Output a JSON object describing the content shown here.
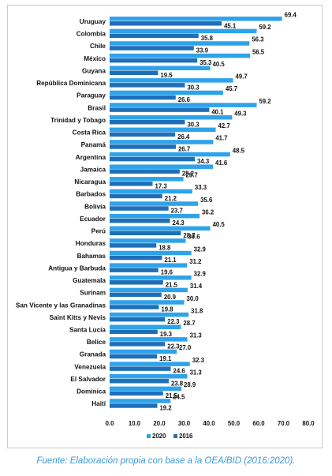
{
  "chart_data": {
    "type": "bar",
    "orientation": "horizontal",
    "categories": [
      "Uruguay",
      "Colombia",
      "Chile",
      "México",
      "Guyana",
      "República Dominicana",
      "Paraguay",
      "Brasil",
      "Trinidad y Tobago",
      "Costa Rica",
      "Panamá",
      "Argentina",
      "Jamaica",
      "Nicaragua",
      "Barbados",
      "Bolivia",
      "Ecuador",
      "Perú",
      "Honduras",
      "Bahamas",
      "Antigua y Barbuda",
      "Guatemala",
      "Surinam",
      "San Vicente y las Granadinas",
      "Saint Kitts y Nevis",
      "Santa Lucía",
      "Belice",
      "Granada",
      "Venezuela",
      "El Salvador",
      "Dominica",
      "Haití"
    ],
    "series": [
      {
        "name": "2020",
        "color": "#2ea3ea",
        "values": [
          69.4,
          59.2,
          56.3,
          56.5,
          40.5,
          49.7,
          45.7,
          59.2,
          49.3,
          42.7,
          41.7,
          48.5,
          41.6,
          29.7,
          33.3,
          35.6,
          36.2,
          40.5,
          30.6,
          32.9,
          31.2,
          32.9,
          31.4,
          30.0,
          31.8,
          28.7,
          31.3,
          27.0,
          32.3,
          31.3,
          28.9,
          24.5
        ]
      },
      {
        "name": "2016",
        "color": "#1f6fb8",
        "values": [
          45.1,
          35.8,
          33.9,
          35.3,
          19.5,
          30.3,
          26.6,
          40.1,
          30.3,
          26.4,
          26.7,
          34.3,
          28.2,
          17.3,
          21.2,
          23.7,
          24.3,
          28.7,
          18.8,
          21.1,
          19.6,
          21.5,
          20.9,
          19.8,
          22.3,
          19.3,
          22.3,
          19.1,
          24.6,
          23.8,
          21.5,
          19.2
        ]
      }
    ],
    "xlim": [
      0,
      80
    ],
    "xticks": [
      "0.0",
      "10.0",
      "20.0",
      "30.0",
      "40.0",
      "50.0",
      "60.0",
      "70.0",
      "80.0"
    ],
    "grid": false,
    "legend_position": "bottom"
  },
  "caption": "Fuente: Elaboración propia con base a la OEA/BID (2016:2020)."
}
